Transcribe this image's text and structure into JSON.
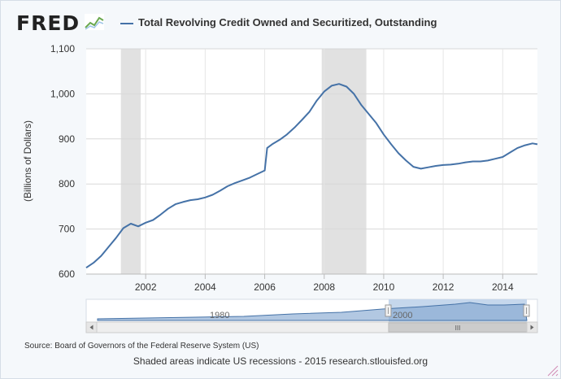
{
  "logo": {
    "text": "FRED",
    "icon": "chart-line-icon"
  },
  "legend": {
    "label": "Total Revolving Credit Owned and Securitized, Outstanding",
    "color": "#4572a7"
  },
  "chart_data": {
    "type": "line",
    "title": "",
    "ylabel": "(Billions of Dollars)",
    "xlabel": "",
    "xlim": [
      "2000-01",
      "2015-03"
    ],
    "ylim": [
      600,
      1100
    ],
    "yticks": [
      600,
      700,
      800,
      900,
      1000,
      1100
    ],
    "ytick_labels": [
      "600",
      "700",
      "800",
      "900",
      "1,000",
      "1,100"
    ],
    "xticks": [
      "2002",
      "2004",
      "2006",
      "2008",
      "2010",
      "2012",
      "2014"
    ],
    "grid": true,
    "recessions": [
      [
        "2001-03",
        "2001-11"
      ],
      [
        "2007-12",
        "2009-06"
      ]
    ],
    "series": [
      {
        "name": "Total Revolving Credit Owned and Securitized, Outstanding",
        "color": "#4572a7",
        "points": [
          [
            "2000-01",
            614
          ],
          [
            "2000-04",
            625
          ],
          [
            "2000-07",
            640
          ],
          [
            "2000-10",
            660
          ],
          [
            "2001-01",
            680
          ],
          [
            "2001-04",
            702
          ],
          [
            "2001-07",
            712
          ],
          [
            "2001-10",
            706
          ],
          [
            "2002-01",
            714
          ],
          [
            "2002-04",
            720
          ],
          [
            "2002-07",
            732
          ],
          [
            "2002-10",
            745
          ],
          [
            "2003-01",
            755
          ],
          [
            "2003-04",
            760
          ],
          [
            "2003-07",
            764
          ],
          [
            "2003-10",
            766
          ],
          [
            "2004-01",
            770
          ],
          [
            "2004-04",
            776
          ],
          [
            "2004-07",
            785
          ],
          [
            "2004-10",
            795
          ],
          [
            "2005-01",
            802
          ],
          [
            "2005-04",
            808
          ],
          [
            "2005-07",
            814
          ],
          [
            "2005-10",
            822
          ],
          [
            "2006-01",
            830
          ],
          [
            "2006-02",
            880
          ],
          [
            "2006-04",
            888
          ],
          [
            "2006-07",
            898
          ],
          [
            "2006-10",
            910
          ],
          [
            "2007-01",
            925
          ],
          [
            "2007-04",
            942
          ],
          [
            "2007-07",
            960
          ],
          [
            "2007-10",
            985
          ],
          [
            "2008-01",
            1005
          ],
          [
            "2008-04",
            1018
          ],
          [
            "2008-07",
            1022
          ],
          [
            "2008-10",
            1016
          ],
          [
            "2009-01",
            1000
          ],
          [
            "2009-04",
            975
          ],
          [
            "2009-07",
            955
          ],
          [
            "2009-10",
            935
          ],
          [
            "2010-01",
            910
          ],
          [
            "2010-04",
            888
          ],
          [
            "2010-07",
            868
          ],
          [
            "2010-10",
            852
          ],
          [
            "2011-01",
            838
          ],
          [
            "2011-04",
            834
          ],
          [
            "2011-07",
            837
          ],
          [
            "2011-10",
            840
          ],
          [
            "2012-01",
            842
          ],
          [
            "2012-04",
            843
          ],
          [
            "2012-07",
            845
          ],
          [
            "2012-10",
            848
          ],
          [
            "2013-01",
            850
          ],
          [
            "2013-04",
            850
          ],
          [
            "2013-07",
            852
          ],
          [
            "2013-10",
            856
          ],
          [
            "2014-01",
            860
          ],
          [
            "2014-04",
            870
          ],
          [
            "2014-07",
            880
          ],
          [
            "2014-10",
            886
          ],
          [
            "2015-01",
            890
          ],
          [
            "2015-03",
            888
          ]
        ]
      }
    ]
  },
  "navigator": {
    "label_1980": "1980",
    "label_2000": "2000",
    "scroll_grip": "III"
  },
  "source": "Source: Board of Governors of the Federal Reserve System (US)",
  "footnote": "Shaded areas indicate US recessions - 2015 research.stlouisfed.org"
}
